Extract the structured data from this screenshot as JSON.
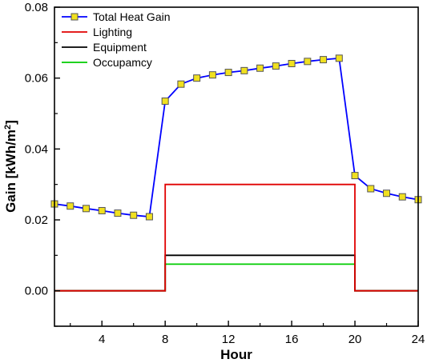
{
  "chart_data": {
    "type": "line",
    "title": "",
    "xlabel": "Hour",
    "ylabel": "Gain [kWh/m",
    "ylabel_sup": "2",
    "ylabel_end": "]",
    "xlim": [
      1,
      24
    ],
    "ylim": [
      -0.01,
      0.08
    ],
    "xticks": [
      4,
      8,
      12,
      16,
      20,
      24
    ],
    "xtick_labels": [
      "4",
      "8",
      "12",
      "16",
      "20",
      "24"
    ],
    "yticks": [
      0.0,
      0.02,
      0.04,
      0.06,
      0.08
    ],
    "ytick_labels": [
      "0.00",
      "0.02",
      "0.04",
      "0.06",
      "0.08"
    ],
    "grid": false,
    "legend_position": "top-left",
    "series": [
      {
        "name": "Total Heat Gain",
        "color": "#0000ff",
        "marker": "square",
        "marker_color": "#f0e020",
        "x": [
          1,
          2,
          3,
          4,
          5,
          6,
          7,
          8,
          9,
          10,
          11,
          12,
          13,
          14,
          15,
          16,
          17,
          18,
          19,
          20,
          21,
          22,
          23,
          24
        ],
        "y": [
          0.0245,
          0.0239,
          0.0232,
          0.0226,
          0.0219,
          0.0213,
          0.0209,
          0.0535,
          0.0583,
          0.06,
          0.0609,
          0.0616,
          0.0621,
          0.0628,
          0.0634,
          0.0641,
          0.0647,
          0.0652,
          0.0656,
          0.0325,
          0.0288,
          0.0275,
          0.0265,
          0.0257
        ]
      },
      {
        "name": "Lighting",
        "color": "#e00000",
        "step": true,
        "x": [
          1,
          8,
          8,
          20,
          20,
          24
        ],
        "y": [
          0.0,
          0.0,
          0.03,
          0.03,
          0.0,
          0.0
        ]
      },
      {
        "name": "Equipment",
        "color": "#000000",
        "step": true,
        "x": [
          1,
          8,
          8,
          20,
          20,
          24
        ],
        "y": [
          0.0,
          0.0,
          0.01,
          0.01,
          0.0,
          0.0
        ]
      },
      {
        "name": "Occupamcy",
        "color": "#00cc00",
        "step": true,
        "x": [
          1,
          8,
          8,
          20,
          20,
          24
        ],
        "y": [
          0.0,
          0.0,
          0.0075,
          0.0075,
          0.0,
          0.0
        ]
      }
    ]
  }
}
